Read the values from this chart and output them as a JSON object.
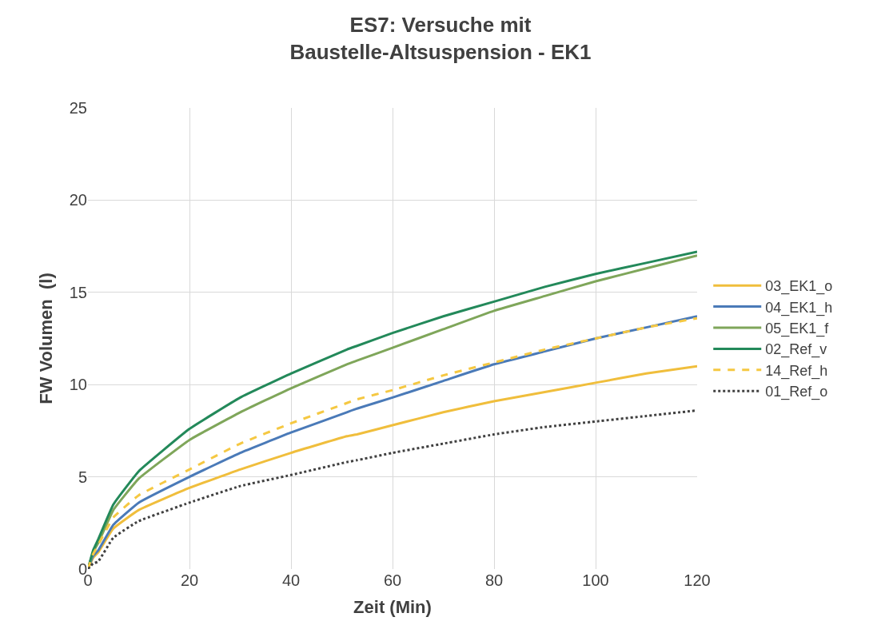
{
  "chart_data": {
    "type": "line",
    "title": "ES7: Versuche mit\nBaustelle-Altsuspension - EK1",
    "xlabel": "Zeit (Min)",
    "ylabel": "FW Volumen  (l)",
    "xlim": [
      0,
      120
    ],
    "xticks": [
      0,
      20,
      40,
      60,
      80,
      100,
      120
    ],
    "ylim": [
      0,
      25
    ],
    "yticks": [
      0,
      5,
      10,
      15,
      20,
      25
    ],
    "grid": true,
    "legend": "right",
    "marker": "none",
    "line_style": "solid",
    "x": [
      0,
      1,
      2,
      5,
      10,
      20,
      30,
      40,
      51,
      53,
      60,
      70,
      80,
      90,
      100,
      110,
      120
    ],
    "series": [
      {
        "name": "03_EK1_o",
        "color": "#f0be3c",
        "values": [
          0,
          0.6,
          0.9,
          2.2,
          3.2,
          4.4,
          5.4,
          6.3,
          7.2,
          7.3,
          7.8,
          8.5,
          9.1,
          9.6,
          10.1,
          10.6,
          11.0
        ]
      },
      {
        "name": "04_EK1_h",
        "color": "#4a7ab8",
        "values": [
          0,
          0.7,
          1.0,
          2.4,
          3.6,
          5.0,
          6.3,
          7.4,
          8.5,
          8.7,
          9.3,
          10.2,
          11.1,
          11.8,
          12.5,
          13.1,
          13.7
        ]
      },
      {
        "name": "05_EK1_f",
        "color": "#7fa65a",
        "values": [
          0,
          0.9,
          1.4,
          3.2,
          4.9,
          7.0,
          8.5,
          9.8,
          11.1,
          11.3,
          12.0,
          13.0,
          14.0,
          14.8,
          15.6,
          16.3,
          17.0
        ]
      },
      {
        "name": "02_Ref_v",
        "color": "#23895a",
        "values": [
          0,
          1.0,
          1.6,
          3.5,
          5.3,
          7.6,
          9.3,
          10.6,
          11.9,
          12.1,
          12.8,
          13.7,
          14.5,
          15.3,
          16.0,
          16.6,
          17.2
        ]
      },
      {
        "name": "14_Ref_h",
        "color": "#f5c842",
        "line_style": "dashed",
        "values": [
          0,
          0.8,
          1.3,
          2.8,
          4.0,
          5.4,
          6.8,
          7.9,
          9.0,
          9.2,
          9.7,
          10.5,
          11.2,
          11.9,
          12.5,
          13.1,
          13.6
        ]
      },
      {
        "name": "01_Ref_o",
        "color": "#404040",
        "line_style": "dotted",
        "values": [
          0,
          0.3,
          0.4,
          1.7,
          2.6,
          3.6,
          4.5,
          5.1,
          5.8,
          5.9,
          6.3,
          6.8,
          7.3,
          7.7,
          8.0,
          8.3,
          8.6
        ]
      }
    ]
  }
}
